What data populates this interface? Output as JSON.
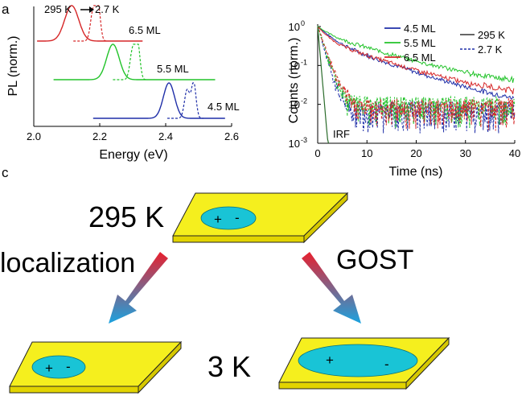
{
  "panel_labels": {
    "a": "a",
    "c": "c"
  },
  "colors": {
    "red": "#d62728",
    "green": "#22c32a",
    "blue": "#1f2fa8",
    "dark": "#333333",
    "plate_top": "#f5ef1e",
    "plate_side": "#e2d400",
    "exciton": "#19c4d6",
    "arrow_start": "#e8202e",
    "arrow_end": "#1aa3e0",
    "irf": "#2a6b2a"
  },
  "chart_data": [
    {
      "type": "line",
      "title": "",
      "xlabel": "Energy (eV)",
      "ylabel": "PL (norm.)",
      "xlim": [
        2.0,
        2.6
      ],
      "xticks": [
        "2.0",
        "2.2",
        "2.4",
        "2.6"
      ],
      "temperature_annotation": {
        "from": "295 K",
        "to": "2.7 K"
      },
      "series": [
        {
          "name": "6.5 ML",
          "color": "#d62728",
          "offset": 2.0,
          "peak_295K": 2.115,
          "fwhm_295K": 0.05,
          "peaks_2_7K": [
            {
              "x": 2.18,
              "h": 0.85,
              "w": 0.008
            },
            {
              "x": 2.195,
              "h": 1.0,
              "w": 0.007
            }
          ],
          "xrange": [
            2.01,
            2.33
          ]
        },
        {
          "name": "5.5 ML",
          "color": "#22c32a",
          "offset": 1.0,
          "peak_295K": 2.24,
          "fwhm_295K": 0.045,
          "peaks_2_7K": [
            {
              "x": 2.3,
              "h": 0.85,
              "w": 0.008
            },
            {
              "x": 2.315,
              "h": 1.0,
              "w": 0.007
            }
          ],
          "xrange": [
            2.06,
            2.55
          ]
        },
        {
          "name": "4.5 ML",
          "color": "#1f2fa8",
          "offset": 0.0,
          "peak_295K": 2.41,
          "fwhm_295K": 0.04,
          "peaks_2_7K": [
            {
              "x": 2.465,
              "h": 0.8,
              "w": 0.008
            },
            {
              "x": 2.485,
              "h": 1.0,
              "w": 0.007
            }
          ],
          "xrange": [
            2.18,
            2.58
          ]
        }
      ]
    },
    {
      "type": "line",
      "title": "",
      "xlabel": "Time (ns)",
      "ylabel": "Counts (norm.)",
      "xlim": [
        -1,
        40
      ],
      "ylim": [
        0.001,
        1
      ],
      "yscale": "log",
      "xticks": [
        "0",
        "10",
        "20",
        "30",
        "40"
      ],
      "yticks": [
        "10^-3",
        "10^-2",
        "10^-1",
        "10^0"
      ],
      "legend_colors": [
        {
          "label": "4.5 ML",
          "color": "#1f2fa8"
        },
        {
          "label": "5.5 ML",
          "color": "#22c32a"
        },
        {
          "label": "6.5 ML",
          "color": "#d62728"
        }
      ],
      "legend_styles": [
        {
          "label": "295 K",
          "style": "solid"
        },
        {
          "label": "2.7 K",
          "style": "dashed"
        }
      ],
      "irf_label": "IRF",
      "series": [
        {
          "name": "4.5 ML 295 K",
          "color": "#1f2fa8",
          "style": "solid",
          "components": [
            {
              "a": 0.55,
              "tau": 2.5
            },
            {
              "a": 0.45,
              "tau": 10
            }
          ],
          "floor": 0.006
        },
        {
          "name": "5.5 ML 295 K",
          "color": "#22c32a",
          "style": "solid",
          "components": [
            {
              "a": 0.35,
              "tau": 2.0
            },
            {
              "a": 0.65,
              "tau": 11
            }
          ],
          "floor": 0.025
        },
        {
          "name": "6.5 ML 295 K",
          "color": "#d62728",
          "style": "solid",
          "components": [
            {
              "a": 0.55,
              "tau": 1.8
            },
            {
              "a": 0.45,
              "tau": 10
            }
          ],
          "floor": 0.015
        },
        {
          "name": "4.5 ML 2.7 K",
          "color": "#1f2fa8",
          "style": "dashed",
          "components": [
            {
              "a": 1.0,
              "tau": 1.0
            }
          ],
          "floor": 0.006
        },
        {
          "name": "5.5 ML 2.7 K",
          "color": "#22c32a",
          "style": "dashed",
          "components": [
            {
              "a": 1.0,
              "tau": 1.1
            }
          ],
          "floor": 0.008
        },
        {
          "name": "6.5 ML 2.7 K",
          "color": "#d62728",
          "style": "dashed",
          "components": [
            {
              "a": 1.0,
              "tau": 1.2
            }
          ],
          "floor": 0.007
        },
        {
          "name": "IRF",
          "color": "#2a6b2a",
          "style": "solid",
          "components": [
            {
              "a": 1.0,
              "tau": 0.3
            }
          ],
          "floor": 0.0001
        }
      ]
    }
  ],
  "schematic": {
    "temp_top": "295 K",
    "temp_bottom": "3 K",
    "left_label": "localization",
    "right_label": "GOST",
    "charge_plus": "+",
    "charge_minus": "-"
  }
}
